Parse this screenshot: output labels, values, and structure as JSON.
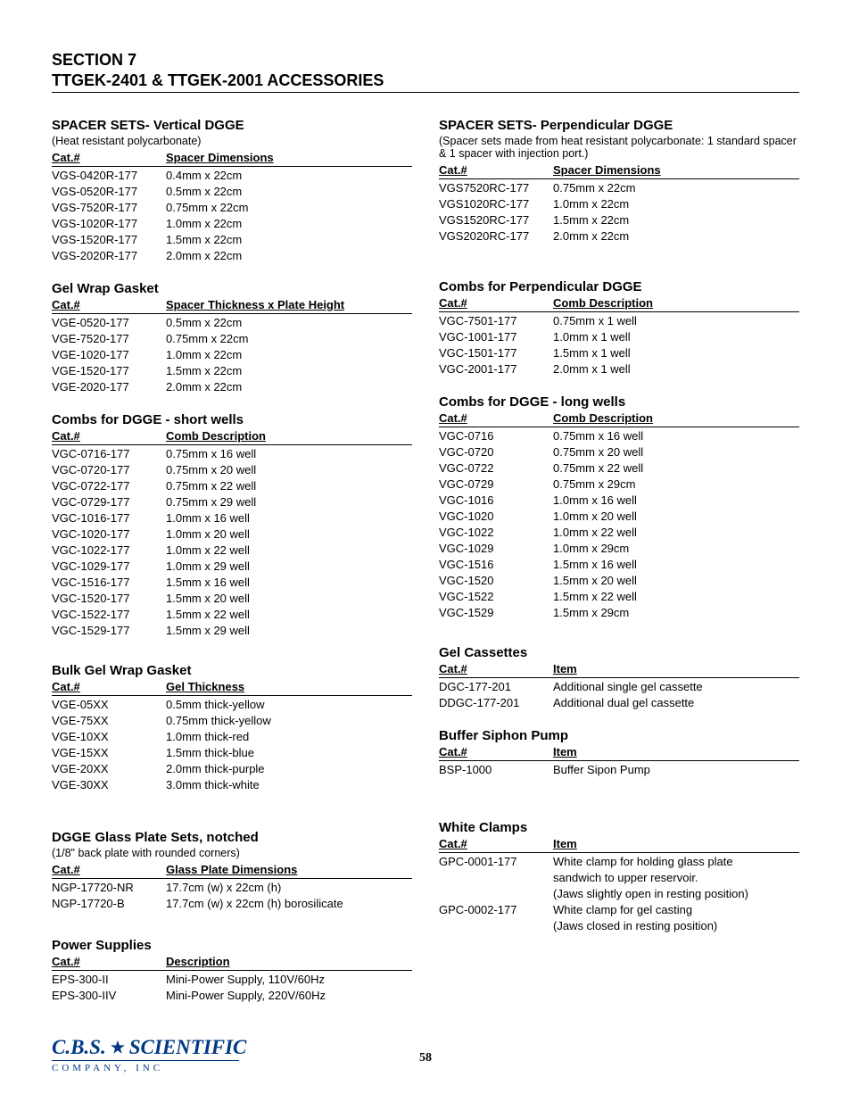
{
  "header": {
    "line1": "SECTION 7",
    "line2": "TTGEK-2401 & TTGEK-2001 ACCESSORIES"
  },
  "left": {
    "spacer_vertical": {
      "title": "SPACER SETS- Vertical DGGE",
      "note": "(Heat resistant polycarbonate)",
      "headers": [
        "Cat.#",
        "Spacer Dimensions"
      ],
      "rows": [
        [
          "VGS-0420R-177",
          "0.4mm x 22cm"
        ],
        [
          "VGS-0520R-177",
          "0.5mm x 22cm"
        ],
        [
          "VGS-7520R-177",
          "0.75mm x 22cm"
        ],
        [
          "VGS-1020R-177",
          "1.0mm x 22cm"
        ],
        [
          "VGS-1520R-177",
          "1.5mm x 22cm"
        ],
        [
          "VGS-2020R-177",
          "2.0mm x 22cm"
        ]
      ]
    },
    "gel_wrap": {
      "title": "Gel Wrap Gasket",
      "headers": [
        "Cat.#",
        "Spacer Thickness x Plate Height"
      ],
      "rows": [
        [
          "VGE-0520-177",
          "0.5mm x 22cm"
        ],
        [
          "VGE-7520-177",
          "0.75mm x 22cm"
        ],
        [
          "VGE-1020-177",
          "1.0mm x 22cm"
        ],
        [
          "VGE-1520-177",
          "1.5mm x 22cm"
        ],
        [
          "VGE-2020-177",
          "2.0mm x 22cm"
        ]
      ]
    },
    "combs_short": {
      "title": "Combs for DGGE - short wells",
      "headers": [
        "Cat.#",
        "Comb Description"
      ],
      "rows": [
        [
          "VGC-0716-177",
          "0.75mm x 16 well"
        ],
        [
          "VGC-0720-177",
          "0.75mm x 20 well"
        ],
        [
          "VGC-0722-177",
          "0.75mm x 22 well"
        ],
        [
          "VGC-0729-177",
          "0.75mm x 29 well"
        ],
        [
          "VGC-1016-177",
          "1.0mm x 16 well"
        ],
        [
          "VGC-1020-177",
          "1.0mm x 20 well"
        ],
        [
          "VGC-1022-177",
          "1.0mm x 22 well"
        ],
        [
          "VGC-1029-177",
          "1.0mm x 29 well"
        ],
        [
          "VGC-1516-177",
          "1.5mm x 16 well"
        ],
        [
          "VGC-1520-177",
          "1.5mm x 20 well"
        ],
        [
          "VGC-1522-177",
          "1.5mm x 22 well"
        ],
        [
          "VGC-1529-177",
          "1.5mm x 29 well"
        ]
      ]
    },
    "bulk_gel": {
      "title": "Bulk Gel Wrap Gasket",
      "headers": [
        "Cat.#",
        "Gel Thickness"
      ],
      "rows": [
        [
          "VGE-05XX",
          "0.5mm thick-yellow"
        ],
        [
          "VGE-75XX",
          "0.75mm thick-yellow"
        ],
        [
          "VGE-10XX",
          "1.0mm thick-red"
        ],
        [
          "VGE-15XX",
          "1.5mm thick-blue"
        ],
        [
          "VGE-20XX",
          "2.0mm thick-purple"
        ],
        [
          "VGE-30XX",
          "3.0mm thick-white"
        ]
      ]
    },
    "glass_plate": {
      "title": "DGGE Glass Plate Sets, notched",
      "note": "(1/8\" back plate with rounded corners)",
      "headers": [
        "Cat.#",
        "Glass Plate Dimensions"
      ],
      "rows": [
        [
          "NGP-17720-NR",
          "17.7cm (w) x 22cm (h)"
        ],
        [
          "NGP-17720-B",
          "17.7cm (w) x 22cm (h) borosilicate"
        ]
      ]
    },
    "power": {
      "title": "Power Supplies",
      "headers": [
        "Cat.#",
        "Description"
      ],
      "rows": [
        [
          "EPS-300-II",
          "Mini-Power Supply, 110V/60Hz"
        ],
        [
          "EPS-300-IIV",
          "Mini-Power Supply, 220V/60Hz"
        ]
      ]
    }
  },
  "right": {
    "spacer_perp": {
      "title": "SPACER SETS- Perpendicular DGGE",
      "note": "(Spacer sets made from heat resistant polycarbonate: 1 standard spacer & 1 spacer with injection port.)",
      "headers": [
        "Cat.#",
        "Spacer Dimensions"
      ],
      "rows": [
        [
          "VGS7520RC-177",
          "0.75mm x 22cm"
        ],
        [
          "VGS1020RC-177",
          "1.0mm x 22cm"
        ],
        [
          "VGS1520RC-177",
          "1.5mm x 22cm"
        ],
        [
          "VGS2020RC-177",
          "2.0mm x 22cm"
        ]
      ]
    },
    "combs_perp": {
      "title": "Combs for Perpendicular DGGE",
      "headers": [
        "Cat.#",
        "Comb Description"
      ],
      "rows": [
        [
          "VGC-7501-177",
          "0.75mm x 1 well"
        ],
        [
          "VGC-1001-177",
          "1.0mm x 1 well"
        ],
        [
          "VGC-1501-177",
          "1.5mm x 1 well"
        ],
        [
          "VGC-2001-177",
          "2.0mm x 1 well"
        ]
      ]
    },
    "combs_long": {
      "title": "Combs for DGGE - long wells",
      "headers": [
        "Cat.#",
        "Comb Description"
      ],
      "rows": [
        [
          "VGC-0716",
          "0.75mm x 16 well"
        ],
        [
          "VGC-0720",
          "0.75mm x 20 well"
        ],
        [
          "VGC-0722",
          "0.75mm x 22 well"
        ],
        [
          "VGC-0729",
          "0.75mm x 29cm"
        ],
        [
          "VGC-1016",
          "1.0mm x 16 well"
        ],
        [
          "VGC-1020",
          "1.0mm x 20 well"
        ],
        [
          "VGC-1022",
          "1.0mm x 22 well"
        ],
        [
          "VGC-1029",
          "1.0mm x 29cm"
        ],
        [
          "VGC-1516",
          "1.5mm x 16 well"
        ],
        [
          "VGC-1520",
          "1.5mm x 20 well"
        ],
        [
          "VGC-1522",
          "1.5mm x 22 well"
        ],
        [
          "VGC-1529",
          "1.5mm x 29cm"
        ]
      ]
    },
    "gel_cassettes": {
      "title": "Gel Cassettes",
      "headers": [
        "Cat.#",
        "Item"
      ],
      "rows": [
        [
          "DGC-177-201",
          "Additional single gel cassette"
        ],
        [
          "DDGC-177-201",
          "Additional dual gel cassette"
        ]
      ]
    },
    "siphon": {
      "title": "Buffer Siphon Pump",
      "headers": [
        "Cat.#",
        "Item"
      ],
      "rows": [
        [
          "BSP-1000",
          "Buffer Sipon Pump"
        ]
      ]
    },
    "clamps": {
      "title": "White Clamps",
      "headers": [
        "Cat.#",
        "Item"
      ],
      "rows": [
        [
          "GPC-0001-177",
          "White clamp for holding glass plate"
        ],
        [
          "",
          "sandwich to upper reservoir."
        ],
        [
          "",
          "(Jaws slightly open in resting position)"
        ],
        [
          "GPC-0002-177",
          "White clamp for gel casting"
        ],
        [
          "",
          "(Jaws closed in resting position)"
        ]
      ]
    }
  },
  "page_number": "58",
  "logo": {
    "brand_left": "C.B.S.",
    "brand_right": "SCIENTIFIC",
    "company": "COMPANY, INC",
    "star_color": "#003a82"
  }
}
